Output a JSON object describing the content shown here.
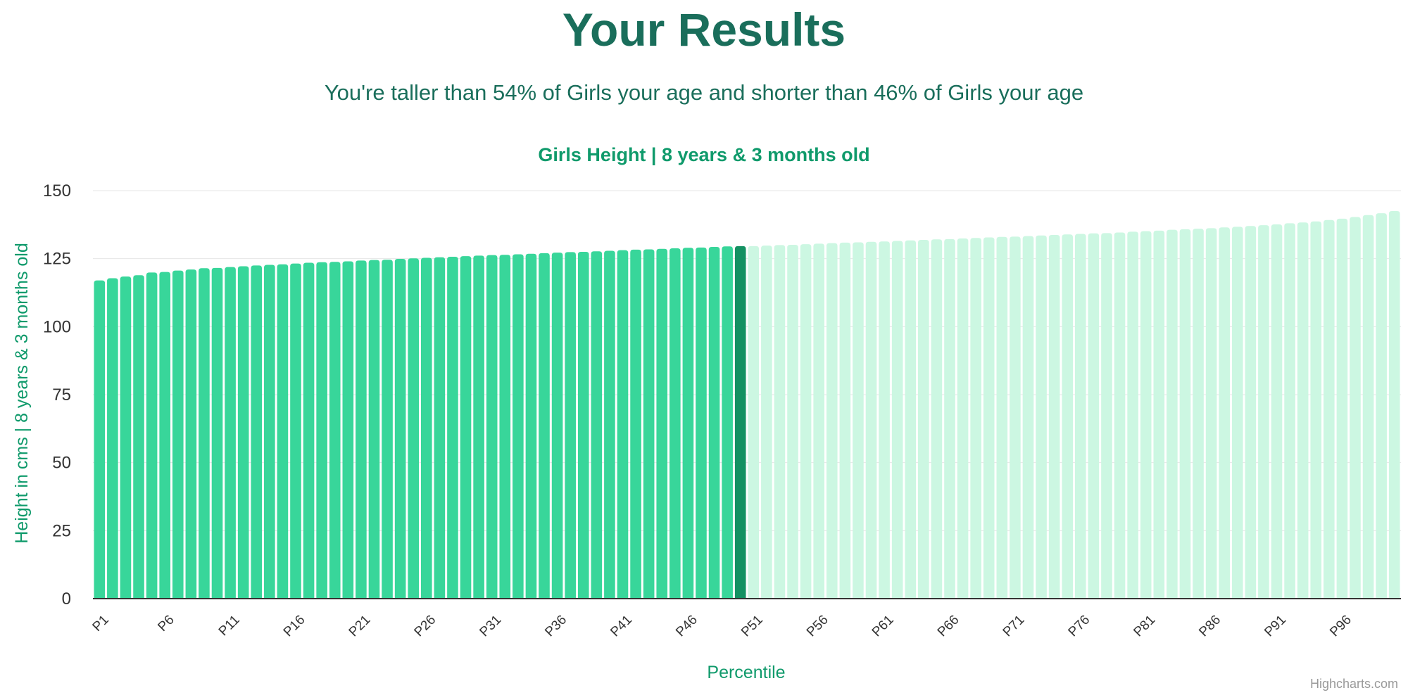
{
  "header": {
    "title": "Your Results",
    "summary": "You're taller than 54% of Girls your age and shorter than 46% of Girls your age"
  },
  "credits": "Highcharts.com",
  "colors": {
    "below": "#38d69a",
    "highlight": "#149162",
    "above": "#ccf7e2",
    "title": "#1a6e5b",
    "axis_title": "#0f9a6b"
  },
  "chart_data": {
    "type": "bar",
    "title": "Girls Height | 8 years & 3 months old",
    "xlabel": "Percentile",
    "ylabel": "Height in cms | 8 years & 3 months old",
    "ylim": [
      0,
      150
    ],
    "yticks": [
      0,
      25,
      50,
      75,
      100,
      125,
      150
    ],
    "xtick_labels": [
      "P1",
      "P6",
      "P11",
      "P16",
      "P21",
      "P26",
      "P31",
      "P36",
      "P41",
      "P46",
      "P51",
      "P56",
      "P61",
      "P66",
      "P71",
      "P76",
      "P81",
      "P86",
      "P91",
      "P96"
    ],
    "highlight_percentile": 50,
    "grid": true,
    "categories": [
      "P1",
      "P2",
      "P3",
      "P4",
      "P5",
      "P6",
      "P7",
      "P8",
      "P9",
      "P10",
      "P11",
      "P12",
      "P13",
      "P14",
      "P15",
      "P16",
      "P17",
      "P18",
      "P19",
      "P20",
      "P21",
      "P22",
      "P23",
      "P24",
      "P25",
      "P26",
      "P27",
      "P28",
      "P29",
      "P30",
      "P31",
      "P32",
      "P33",
      "P34",
      "P35",
      "P36",
      "P37",
      "P38",
      "P39",
      "P40",
      "P41",
      "P42",
      "P43",
      "P44",
      "P45",
      "P46",
      "P47",
      "P48",
      "P49",
      "P50",
      "P51",
      "P52",
      "P53",
      "P54",
      "P55",
      "P56",
      "P57",
      "P58",
      "P59",
      "P60",
      "P61",
      "P62",
      "P63",
      "P64",
      "P65",
      "P66",
      "P67",
      "P68",
      "P69",
      "P70",
      "P71",
      "P72",
      "P73",
      "P74",
      "P75",
      "P76",
      "P77",
      "P78",
      "P79",
      "P80",
      "P81",
      "P82",
      "P83",
      "P84",
      "P85",
      "P86",
      "P87",
      "P88",
      "P89",
      "P90",
      "P91",
      "P92",
      "P93",
      "P94",
      "P95",
      "P96",
      "P97",
      "P98",
      "P99",
      "P100"
    ],
    "values": [
      117.0,
      117.8,
      118.4,
      118.9,
      119.9,
      120.1,
      120.6,
      121.0,
      121.5,
      121.6,
      121.9,
      122.2,
      122.5,
      122.7,
      122.9,
      123.2,
      123.5,
      123.7,
      123.8,
      124.0,
      124.3,
      124.5,
      124.6,
      124.9,
      125.1,
      125.3,
      125.5,
      125.7,
      125.9,
      126.1,
      126.3,
      126.4,
      126.6,
      126.8,
      127.0,
      127.2,
      127.4,
      127.5,
      127.7,
      127.9,
      128.1,
      128.3,
      128.4,
      128.6,
      128.8,
      129.0,
      129.1,
      129.3,
      129.5,
      129.6,
      129.6,
      129.8,
      130.0,
      130.1,
      130.3,
      130.5,
      130.7,
      130.9,
      131.0,
      131.2,
      131.3,
      131.5,
      131.7,
      131.9,
      132.1,
      132.2,
      132.4,
      132.6,
      132.8,
      133.0,
      133.1,
      133.3,
      133.5,
      133.7,
      133.9,
      134.1,
      134.3,
      134.4,
      134.6,
      134.9,
      135.1,
      135.3,
      135.6,
      135.8,
      136.0,
      136.2,
      136.5,
      136.7,
      137.0,
      137.3,
      137.6,
      138.0,
      138.3,
      138.7,
      139.2,
      139.7,
      140.3,
      141.0,
      141.7,
      142.5
    ]
  }
}
